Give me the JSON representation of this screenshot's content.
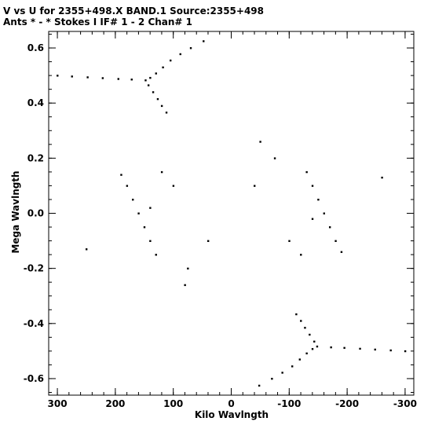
{
  "chart_data": {
    "type": "scatter",
    "title": "V vs U for 2355+498.X BAND.1   Source:2355+498",
    "subtitle": "Ants * - *     Stokes I  IF# 1 - 2  Chan# 1",
    "xlabel": "Kilo Wavlngth",
    "ylabel": "Mega Wavlngth",
    "xlim": [
      315,
      -315
    ],
    "ylim": [
      -0.66,
      0.66
    ],
    "x_ticks": [
      {
        "value": 300,
        "label": "300"
      },
      {
        "value": 200,
        "label": "200"
      },
      {
        "value": 100,
        "label": "100"
      },
      {
        "value": 0,
        "label": "0"
      },
      {
        "value": -100,
        "label": "-100"
      },
      {
        "value": -200,
        "label": "-200"
      },
      {
        "value": -300,
        "label": "-300"
      }
    ],
    "y_ticks": [
      {
        "value": 0.6,
        "label": "0.6"
      },
      {
        "value": 0.4,
        "label": "0.4"
      },
      {
        "value": 0.2,
        "label": "0.2"
      },
      {
        "value": 0.0,
        "label": "0.0"
      },
      {
        "value": -0.2,
        "label": "-0.2"
      },
      {
        "value": -0.4,
        "label": "-0.4"
      },
      {
        "value": -0.6,
        "label": "-0.6"
      }
    ],
    "x_minor_step": 20,
    "y_minor_step": 0.05,
    "marker_color": "#000000",
    "grid": false,
    "legend": "none",
    "series": [
      {
        "values": [
          [
            300,
            0.5
          ],
          [
            275,
            0.497
          ],
          [
            248,
            0.494
          ],
          [
            222,
            0.491
          ],
          [
            195,
            0.488
          ],
          [
            172,
            0.486
          ],
          [
            148,
            0.483
          ],
          [
            140,
            0.492
          ],
          [
            130,
            0.508
          ],
          [
            118,
            0.53
          ],
          [
            105,
            0.555
          ],
          [
            88,
            0.578
          ],
          [
            70,
            0.6
          ],
          [
            48,
            0.625
          ],
          [
            143,
            0.465
          ],
          [
            135,
            0.44
          ],
          [
            127,
            0.415
          ],
          [
            120,
            0.39
          ],
          [
            112,
            0.366
          ],
          [
            -300,
            -0.5
          ],
          [
            -275,
            -0.497
          ],
          [
            -248,
            -0.494
          ],
          [
            -222,
            -0.491
          ],
          [
            -195,
            -0.488
          ],
          [
            -172,
            -0.486
          ],
          [
            -148,
            -0.483
          ],
          [
            -140,
            -0.492
          ],
          [
            -130,
            -0.508
          ],
          [
            -118,
            -0.53
          ],
          [
            -105,
            -0.555
          ],
          [
            -88,
            -0.578
          ],
          [
            -70,
            -0.6
          ],
          [
            -48,
            -0.625
          ],
          [
            -143,
            -0.465
          ],
          [
            -135,
            -0.44
          ],
          [
            -127,
            -0.415
          ],
          [
            -120,
            -0.39
          ],
          [
            -112,
            -0.366
          ],
          [
            190,
            0.14
          ],
          [
            180,
            0.1
          ],
          [
            170,
            0.05
          ],
          [
            160,
            0.0
          ],
          [
            150,
            -0.05
          ],
          [
            140,
            -0.1
          ],
          [
            130,
            -0.15
          ],
          [
            -190,
            -0.14
          ],
          [
            -180,
            -0.1
          ],
          [
            -170,
            -0.05
          ],
          [
            -160,
            0.0
          ],
          [
            -150,
            0.05
          ],
          [
            -140,
            0.1
          ],
          [
            -130,
            0.15
          ],
          [
            250,
            -0.13
          ],
          [
            -260,
            0.13
          ],
          [
            -50,
            0.26
          ],
          [
            80,
            -0.26
          ],
          [
            120,
            0.15
          ],
          [
            -120,
            -0.15
          ],
          [
            -75,
            0.2
          ],
          [
            75,
            -0.2
          ],
          [
            -40,
            0.1
          ],
          [
            40,
            -0.1
          ],
          [
            140,
            0.02
          ],
          [
            -140,
            -0.02
          ],
          [
            100,
            0.1
          ],
          [
            -100,
            -0.1
          ]
        ]
      }
    ]
  }
}
